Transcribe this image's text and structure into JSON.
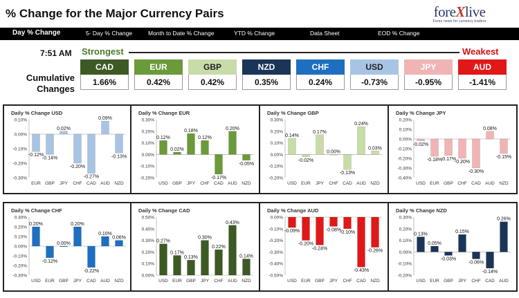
{
  "header": {
    "title": "% Change for the Major Currency Pairs"
  },
  "logo": {
    "main_a": "fore",
    "main_x": "X",
    "main_b": "live",
    "tagline": "Forex news for currency traders"
  },
  "tabs": [
    {
      "label": "Day % Change",
      "active": true
    },
    {
      "label": "5- Day % Change",
      "active": false
    },
    {
      "label": "Month to Date % Change",
      "active": false
    },
    {
      "label": "YTD % Change",
      "active": false
    },
    {
      "label": "Data Sheet",
      "active": false
    },
    {
      "label": "EOD % Change",
      "active": false
    }
  ],
  "time": "7:51 AM",
  "ranking": {
    "strongest": "Strongest",
    "weakest": "Weakest"
  },
  "cumulative": {
    "label_line1": "Cumulative",
    "label_line2": "Changes",
    "items": [
      {
        "name": "CAD",
        "value": "1.66%",
        "color": "#3d5a24"
      },
      {
        "name": "EUR",
        "value": "0.42%",
        "color": "#6b9a3a"
      },
      {
        "name": "GBP",
        "value": "0.42%",
        "color": "#c8dca8",
        "text_color": "#222"
      },
      {
        "name": "NZD",
        "value": "0.35%",
        "color": "#1a3558"
      },
      {
        "name": "CHF",
        "value": "0.24%",
        "color": "#1f6fc0"
      },
      {
        "name": "USD",
        "value": "-0.73%",
        "color": "#a8c4e4",
        "text_color": "#222"
      },
      {
        "name": "JPY",
        "value": "-0.95%",
        "color": "#f0b4b4"
      },
      {
        "name": "AUD",
        "value": "-1.41%",
        "color": "#e01818"
      }
    ]
  },
  "chart_data": [
    {
      "type": "bar",
      "title": "Daily % Change USD",
      "categories": [
        "EUR",
        "GBP",
        "JPY",
        "CHF",
        "CAD",
        "AUD",
        "NZD"
      ],
      "values": [
        -0.12,
        -0.14,
        0.02,
        -0.2,
        -0.27,
        0.09,
        -0.13
      ],
      "ylim": [
        -0.3,
        0.1
      ],
      "ticks": [
        "0.10%",
        "0.00%",
        "-0.10%",
        "-0.20%",
        "-0.30%"
      ],
      "data_labels": [
        "-0.12%",
        "-0.14%",
        "0.02%",
        "-0.20%",
        "-0.27%",
        "0.09%",
        "-0.13%"
      ],
      "color": "#a8c4e4"
    },
    {
      "type": "bar",
      "title": "Daily % Change EUR",
      "categories": [
        "USD",
        "GBP",
        "JPY",
        "CHF",
        "CAD",
        "AUD",
        "NZD"
      ],
      "values": [
        0.12,
        0.02,
        0.18,
        0.12,
        -0.17,
        0.2,
        -0.05
      ],
      "ylim": [
        -0.2,
        0.3
      ],
      "ticks": [
        "0.30%",
        "0.20%",
        "0.10%",
        "0.00%",
        "-0.10%",
        "-0.20%"
      ],
      "data_labels": [
        "0.12%",
        "0.02%",
        "0.18%",
        "0.12%",
        "-0.17%",
        "0.20%",
        "-0.05%"
      ],
      "color": "#6b9a3a"
    },
    {
      "type": "bar",
      "title": "Daily % Change GBP",
      "categories": [
        "USD",
        "EUR",
        "JPY",
        "CHF",
        "CAD",
        "AUD",
        "NZD"
      ],
      "values": [
        0.14,
        -0.02,
        0.17,
        0.0,
        -0.13,
        0.24,
        0.03
      ],
      "ylim": [
        -0.2,
        0.3
      ],
      "ticks": [
        "0.30%",
        "0.20%",
        "0.10%",
        "0.00%",
        "-0.10%",
        "-0.20%"
      ],
      "data_labels": [
        "0.14%",
        "-0.02%",
        "0.17%",
        "0.00%",
        "-0.13%",
        "0.24%",
        "0.03%"
      ],
      "color": "#c8dca8"
    },
    {
      "type": "bar",
      "title": "Daily % Change JPY",
      "categories": [
        "USD",
        "EUR",
        "GBP",
        "CHF",
        "CAD",
        "AUD",
        "NZD"
      ],
      "values": [
        -0.02,
        -0.18,
        -0.17,
        -0.2,
        -0.3,
        0.08,
        -0.15
      ],
      "ylim": [
        -0.4,
        0.2
      ],
      "ticks": [
        "0.20%",
        "0.10%",
        "0.00%",
        "-0.10%",
        "-0.20%",
        "-0.30%",
        "-0.40%"
      ],
      "data_labels": [
        "-0.02%",
        "-0.18%",
        "-0.17%",
        "-0.20%",
        "-0.30%",
        "0.08%",
        "-0.15%"
      ],
      "color": "#f0b4b4"
    },
    {
      "type": "bar",
      "title": "Daily % Change CHF",
      "categories": [
        "USD",
        "EUR",
        "GBP",
        "JPY",
        "CAD",
        "AUD",
        "NZD"
      ],
      "values": [
        0.2,
        -0.12,
        0.0,
        0.2,
        -0.22,
        0.1,
        0.06
      ],
      "ylim": [
        -0.3,
        0.3
      ],
      "ticks": [
        "0.30%",
        "0.20%",
        "0.10%",
        "0.00%",
        "-0.10%",
        "-0.20%",
        "-0.30%"
      ],
      "data_labels": [
        "0.20%",
        "-0.12%",
        "0.00%",
        "0.20%",
        "-0.22%",
        "0.10%",
        "0.06%"
      ],
      "color": "#1f6fc0"
    },
    {
      "type": "bar",
      "title": "Daily % Change CAD",
      "categories": [
        "USD",
        "EUR",
        "GBP",
        "JPY",
        "CHF",
        "AUD",
        "NZD"
      ],
      "values": [
        0.27,
        0.17,
        0.13,
        0.3,
        0.22,
        0.43,
        0.14
      ],
      "ylim": [
        0.0,
        0.5
      ],
      "ticks": [
        "0.50%",
        "0.40%",
        "0.30%",
        "0.20%",
        "0.10%",
        "0.00%"
      ],
      "data_labels": [
        "0.27%",
        "0.17%",
        "0.13%",
        "0.30%",
        "0.22%",
        "0.43%",
        "0.14%"
      ],
      "color": "#3d5a24"
    },
    {
      "type": "bar",
      "title": "Daily % Change AUD",
      "categories": [
        "USD",
        "EUR",
        "GBP",
        "JPY",
        "CHF",
        "CAD",
        "NZD"
      ],
      "values": [
        -0.09,
        -0.2,
        -0.24,
        -0.08,
        -0.1,
        -0.43,
        -0.26
      ],
      "ylim": [
        -0.5,
        0.0
      ],
      "ticks": [
        "0.00%",
        "-0.10%",
        "-0.20%",
        "-0.30%",
        "-0.40%",
        "-0.50%"
      ],
      "data_labels": [
        "-0.09%",
        "-0.20%",
        "-0.24%",
        "-0.08%",
        "-0.10%",
        "-0.43%",
        "-0.26%"
      ],
      "color": "#e01818"
    },
    {
      "type": "bar",
      "title": "Daily % Change NZD",
      "categories": [
        "USD",
        "EUR",
        "GBP",
        "JPY",
        "CHF",
        "CAD",
        "AUD"
      ],
      "values": [
        0.13,
        0.05,
        -0.03,
        0.15,
        -0.06,
        -0.14,
        0.26
      ],
      "ylim": [
        -0.2,
        0.3
      ],
      "ticks": [
        "0.30%",
        "0.20%",
        "0.10%",
        "0.00%",
        "-0.10%",
        "-0.20%"
      ],
      "data_labels": [
        "0.13%",
        "0.05%",
        "-0.03%",
        "0.15%",
        "-0.06%",
        "-0.14%",
        "0.26%"
      ],
      "color": "#1a3558"
    }
  ]
}
